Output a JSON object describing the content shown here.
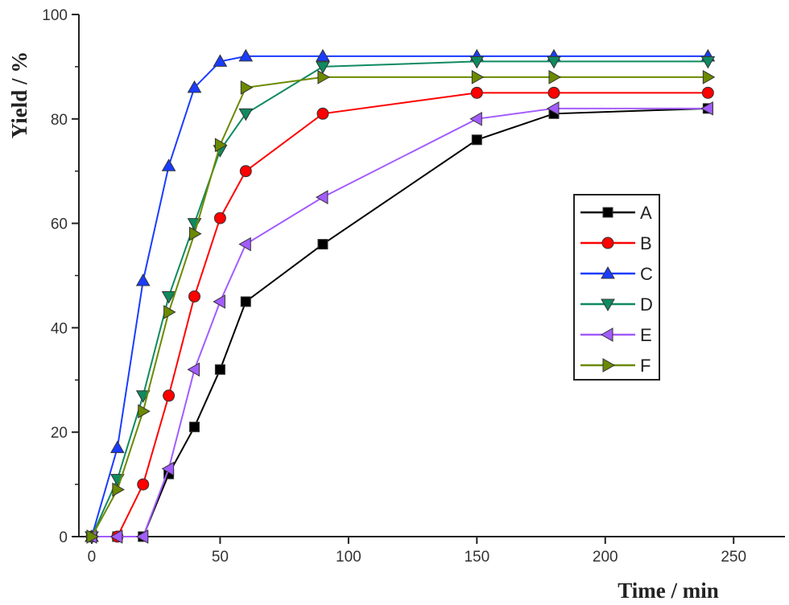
{
  "chart_data": {
    "type": "line",
    "title": "",
    "xlabel": "Time / min",
    "ylabel": "Yield / %",
    "xlim": [
      -5,
      270
    ],
    "ylim": [
      0,
      100
    ],
    "xticks": [
      0,
      50,
      100,
      150,
      200,
      250
    ],
    "yticks": [
      0,
      20,
      40,
      60,
      80,
      100
    ],
    "grid": false,
    "legend_position": "right-middle",
    "series": [
      {
        "name": "A",
        "color": "#000000",
        "marker": "square",
        "x": [
          0,
          10,
          20,
          30,
          40,
          50,
          60,
          90,
          150,
          180,
          240
        ],
        "y": [
          0,
          0,
          0,
          12,
          21,
          32,
          45,
          56,
          76,
          81,
          82
        ]
      },
      {
        "name": "B",
        "color": "#ff0000",
        "marker": "circle",
        "x": [
          0,
          10,
          20,
          30,
          40,
          50,
          60,
          90,
          150,
          180,
          240
        ],
        "y": [
          0,
          0,
          10,
          27,
          46,
          61,
          70,
          81,
          85,
          85,
          85
        ]
      },
      {
        "name": "C",
        "color": "#1a3cff",
        "marker": "triangle-up",
        "x": [
          0,
          10,
          20,
          30,
          40,
          50,
          60,
          90,
          150,
          180,
          240
        ],
        "y": [
          0,
          17,
          49,
          71,
          86,
          91,
          92,
          92,
          92,
          92,
          92
        ]
      },
      {
        "name": "D",
        "color": "#0f8a5f",
        "marker": "triangle-down",
        "x": [
          0,
          10,
          20,
          30,
          40,
          50,
          60,
          90,
          150,
          180,
          240
        ],
        "y": [
          0,
          11,
          27,
          46,
          60,
          74,
          81,
          90,
          91,
          91,
          91
        ]
      },
      {
        "name": "E",
        "color": "#a35cff",
        "marker": "triangle-left",
        "x": [
          0,
          10,
          20,
          30,
          40,
          50,
          60,
          90,
          150,
          180,
          240
        ],
        "y": [
          0,
          0,
          0,
          13,
          32,
          45,
          56,
          65,
          80,
          82,
          82
        ]
      },
      {
        "name": "F",
        "color": "#6b8a00",
        "marker": "triangle-right",
        "x": [
          0,
          10,
          20,
          30,
          40,
          50,
          60,
          90,
          150,
          180,
          240
        ],
        "y": [
          0,
          9,
          24,
          43,
          58,
          75,
          86,
          88,
          88,
          88,
          88
        ]
      }
    ]
  }
}
